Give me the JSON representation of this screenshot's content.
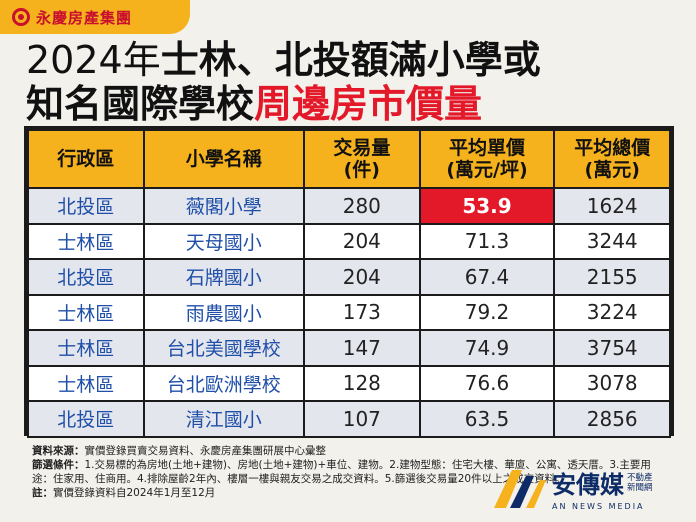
{
  "brand": {
    "name": "永慶房產集團"
  },
  "title": {
    "line1_year": "2024年",
    "line1_rest": "士林、北投額滿小學或",
    "line2_black": "知名國際學校",
    "line2_red": "周邊房市價量"
  },
  "table": {
    "headers": [
      "行政區",
      "小學名稱",
      "交易量\n(件)",
      "平均單價\n(萬元/坪)",
      "平均總價\n(萬元)"
    ],
    "rows": [
      {
        "district": "北投區",
        "school": "薇閣小學",
        "volume": "280",
        "unit_price": "53.9",
        "total_price": "1624"
      },
      {
        "district": "士林區",
        "school": "天母國小",
        "volume": "204",
        "unit_price": "71.3",
        "total_price": "3244"
      },
      {
        "district": "北投區",
        "school": "石牌國小",
        "volume": "204",
        "unit_price": "67.4",
        "total_price": "2155"
      },
      {
        "district": "士林區",
        "school": "雨農國小",
        "volume": "173",
        "unit_price": "79.2",
        "total_price": "3224"
      },
      {
        "district": "士林區",
        "school": "台北美國學校",
        "volume": "147",
        "unit_price": "74.9",
        "total_price": "3754"
      },
      {
        "district": "士林區",
        "school": "台北歐洲學校",
        "volume": "128",
        "unit_price": "76.6",
        "total_price": "3078"
      },
      {
        "district": "北投區",
        "school": "清江國小",
        "volume": "107",
        "unit_price": "63.5",
        "total_price": "2856"
      }
    ]
  },
  "notes": {
    "source_label": "資料來源：",
    "source_text": "實價登錄買賣交易資料、永慶房產集團研展中心彙整",
    "filter_label": "篩選條件：",
    "filter_text": "1.交易標的為房地(土地+建物)、房地(土地+建物)+車位、建物。2.建物型態：住宅大樓、華廈、公寓、透天厝。3.主要用途：住家用、住商用。4.排除屋齡2年內、樓層一樓與親友交易之成交資料。5.篩選後交易量20件以上之成交資料。",
    "note_label": "註：",
    "note_text": "實價登錄資料自2024年1月至12月"
  },
  "watermark": {
    "cn": "安傳媒",
    "sub1": "不動產",
    "sub2": "新聞網",
    "en": "AN NEWS MEDIA"
  },
  "colors": {
    "accent": "#f6b21c",
    "highlight": "#e3192a",
    "district_text": "#1f4fa8"
  }
}
